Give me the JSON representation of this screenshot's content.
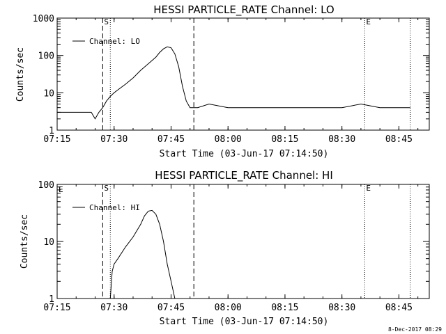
{
  "footer": {
    "timestamp": "8-Dec-2017 08:29"
  },
  "chart_data": [
    {
      "type": "line",
      "title": "HESSI PARTICLE_RATE Channel: LO",
      "xlabel": "Start Time (03-Jun-17 07:14:50)",
      "ylabel": "Counts/sec",
      "yscale": "log",
      "xlim": [
        "07:15",
        "08:53"
      ],
      "ylim": [
        1,
        1000
      ],
      "x_ticks": [
        "07:15",
        "07:30",
        "07:45",
        "08:00",
        "08:15",
        "08:30",
        "08:45"
      ],
      "y_ticks": [
        "1",
        "10",
        "100",
        "1000"
      ],
      "legend": "top-left",
      "series": [
        {
          "name": "Channel: LO",
          "points": [
            [
              "07:15",
              3
            ],
            [
              "07:20",
              3
            ],
            [
              "07:24",
              3
            ],
            [
              "07:25",
              2
            ],
            [
              "07:26",
              3
            ],
            [
              "07:27",
              4
            ],
            [
              "07:28",
              6
            ],
            [
              "07:29",
              8
            ],
            [
              "07:30",
              10
            ],
            [
              "07:31",
              12
            ],
            [
              "07:33",
              17
            ],
            [
              "07:35",
              25
            ],
            [
              "07:37",
              40
            ],
            [
              "07:39",
              60
            ],
            [
              "07:41",
              90
            ],
            [
              "07:42",
              120
            ],
            [
              "07:43",
              150
            ],
            [
              "07:44",
              170
            ],
            [
              "07:45",
              160
            ],
            [
              "07:46",
              110
            ],
            [
              "07:47",
              50
            ],
            [
              "07:48",
              15
            ],
            [
              "07:49",
              6
            ],
            [
              "07:50",
              4
            ],
            [
              "07:52",
              4
            ],
            [
              "07:55",
              5
            ],
            [
              "08:00",
              4
            ],
            [
              "08:10",
              4
            ],
            [
              "08:20",
              4
            ],
            [
              "08:30",
              4
            ],
            [
              "08:35",
              5
            ],
            [
              "08:40",
              4
            ],
            [
              "08:45",
              4
            ],
            [
              "08:48",
              4
            ]
          ]
        }
      ],
      "markers": [
        {
          "time": "07:27",
          "style": "dashed",
          "label": "S"
        },
        {
          "time": "07:29",
          "style": "dotted",
          "label": ""
        },
        {
          "time": "07:51",
          "style": "dashed",
          "label": ""
        },
        {
          "time": "08:36",
          "style": "dotted",
          "label": "E"
        },
        {
          "time": "08:48",
          "style": "dotted",
          "label": ""
        }
      ]
    },
    {
      "type": "line",
      "title": "HESSI PARTICLE_RATE Channel: HI",
      "xlabel": "Start Time (03-Jun-17 07:14:50)",
      "ylabel": "Counts/sec",
      "yscale": "log",
      "xlim": [
        "07:15",
        "08:53"
      ],
      "ylim": [
        1,
        100
      ],
      "x_ticks": [
        "07:15",
        "07:30",
        "07:45",
        "08:00",
        "08:15",
        "08:30",
        "08:45"
      ],
      "y_ticks": [
        "1",
        "10",
        "100"
      ],
      "legend": "top-left",
      "series": [
        {
          "name": "Channel: HI",
          "points": [
            [
              "07:29",
              1
            ],
            [
              "07:29.5",
              3
            ],
            [
              "07:30",
              4
            ],
            [
              "07:31",
              5
            ],
            [
              "07:33",
              8
            ],
            [
              "07:35",
              12
            ],
            [
              "07:37",
              20
            ],
            [
              "07:38",
              28
            ],
            [
              "07:39",
              34
            ],
            [
              "07:40",
              35
            ],
            [
              "07:41",
              30
            ],
            [
              "07:42",
              20
            ],
            [
              "07:43",
              10
            ],
            [
              "07:44",
              4
            ],
            [
              "07:45",
              2
            ],
            [
              "07:46",
              1
            ]
          ]
        }
      ],
      "markers": [
        {
          "time": "07:27",
          "style": "dashed",
          "label": "S"
        },
        {
          "time": "07:29",
          "style": "dotted",
          "label": ""
        },
        {
          "time": "07:51",
          "style": "dashed",
          "label": ""
        },
        {
          "time": "08:36",
          "style": "dotted",
          "label": "E"
        },
        {
          "time": "08:48",
          "style": "dotted",
          "label": ""
        }
      ],
      "corner_label": "E"
    }
  ]
}
